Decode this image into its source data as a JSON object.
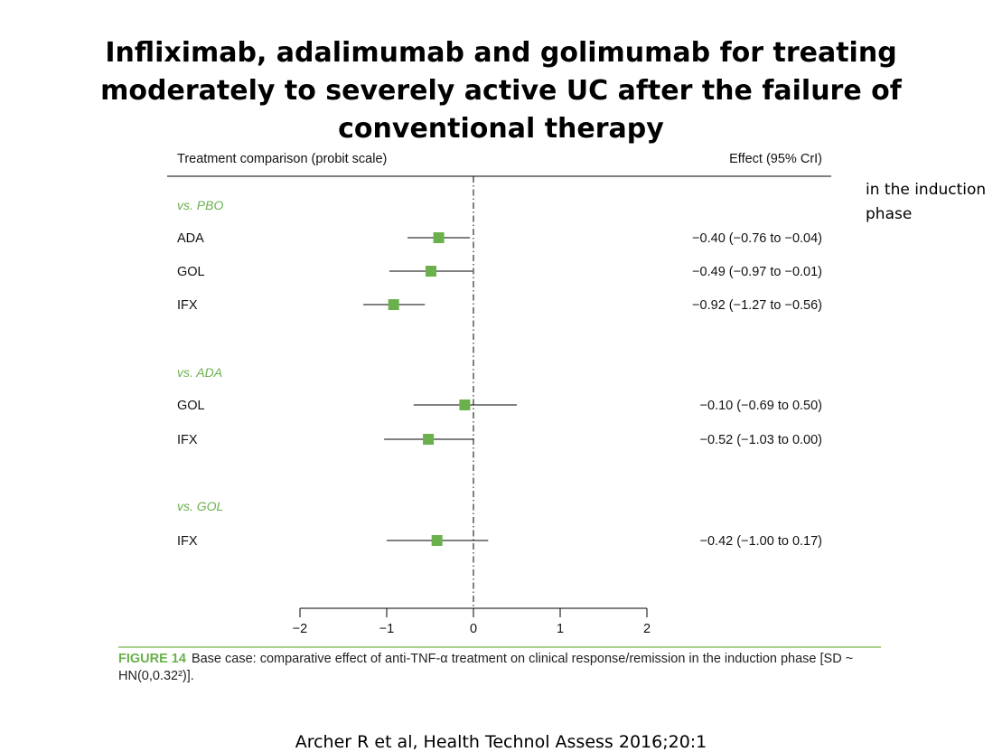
{
  "slide": {
    "title": "Infliximab, adalimumab and golimumab for treating moderately to severely active UC after the failure of conventional therapy",
    "side_note": "in the induction phase",
    "citation": "Archer R et al, Health Technol Assess 2016;20:1"
  },
  "figure": {
    "label": "FIGURE 14",
    "caption": "Base case: comparative effect of anti-TNF-α treatment on clinical response/remission in the induction phase [SD ~ HN(0,0.32²)]."
  },
  "chart_data": {
    "type": "forest",
    "header_left": "Treatment comparison (probit scale)",
    "header_right": "Effect (95% CrI)",
    "xlim": [
      -2,
      2
    ],
    "xticks": [
      -2,
      -1,
      0,
      1,
      2
    ],
    "xtick_labels": [
      "−2",
      "−1",
      "0",
      "1",
      "2"
    ],
    "reference_line": 0,
    "marker_color": "#6ab04c",
    "groups": [
      {
        "label": "vs. PBO",
        "rows": [
          {
            "treatment": "ADA",
            "estimate": -0.4,
            "lower": -0.76,
            "upper": -0.04,
            "effect_text": "−0.40 (−0.76 to −0.04)"
          },
          {
            "treatment": "GOL",
            "estimate": -0.49,
            "lower": -0.97,
            "upper": -0.01,
            "effect_text": "−0.49 (−0.97 to −0.01)"
          },
          {
            "treatment": "IFX",
            "estimate": -0.92,
            "lower": -1.27,
            "upper": -0.56,
            "effect_text": "−0.92 (−1.27 to −0.56)"
          }
        ]
      },
      {
        "label": "vs. ADA",
        "rows": [
          {
            "treatment": "GOL",
            "estimate": -0.1,
            "lower": -0.69,
            "upper": 0.5,
            "effect_text": "−0.10 (−0.69 to 0.50)"
          },
          {
            "treatment": "IFX",
            "estimate": -0.52,
            "lower": -1.03,
            "upper": 0.0,
            "effect_text": "−0.52 (−1.03 to 0.00)"
          }
        ]
      },
      {
        "label": "vs. GOL",
        "rows": [
          {
            "treatment": "IFX",
            "estimate": -0.42,
            "lower": -1.0,
            "upper": 0.17,
            "effect_text": "−0.42 (−1.00 to 0.17)"
          }
        ]
      }
    ]
  }
}
